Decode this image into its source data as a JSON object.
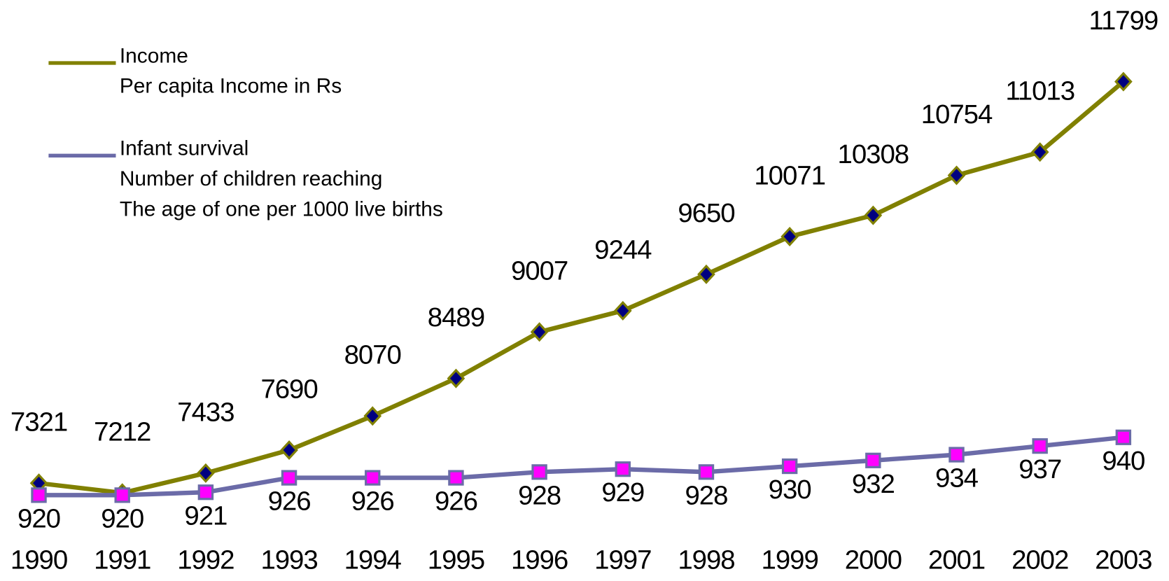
{
  "chart_data": {
    "type": "line",
    "categories": [
      "1990",
      "1991",
      "1992",
      "1993",
      "1994",
      "1995",
      "1996",
      "1997",
      "1998",
      "1999",
      "2000",
      "2001",
      "2002",
      "2003"
    ],
    "series": [
      {
        "name": "Income",
        "description": [
          "Per capita Income in Rs"
        ],
        "color": "#808000",
        "marker_color": "#000080",
        "values": [
          7321,
          7212,
          7433,
          7690,
          8070,
          8489,
          9007,
          9244,
          9650,
          10071,
          10308,
          10754,
          11013,
          11799
        ]
      },
      {
        "name": "Infant survival",
        "description": [
          "Number of children reaching",
          "The age of one per 1000 live births"
        ],
        "color": "#6b6ba8",
        "marker_color": "#ff00ff",
        "axis": "y2",
        "values": [
          920,
          920,
          921,
          926,
          926,
          926,
          928,
          929,
          928,
          930,
          932,
          934,
          937,
          940
        ]
      }
    ],
    "ylim": [
      6230,
      12709
    ],
    "y2lim": [
      890.3,
      1091.3
    ]
  }
}
